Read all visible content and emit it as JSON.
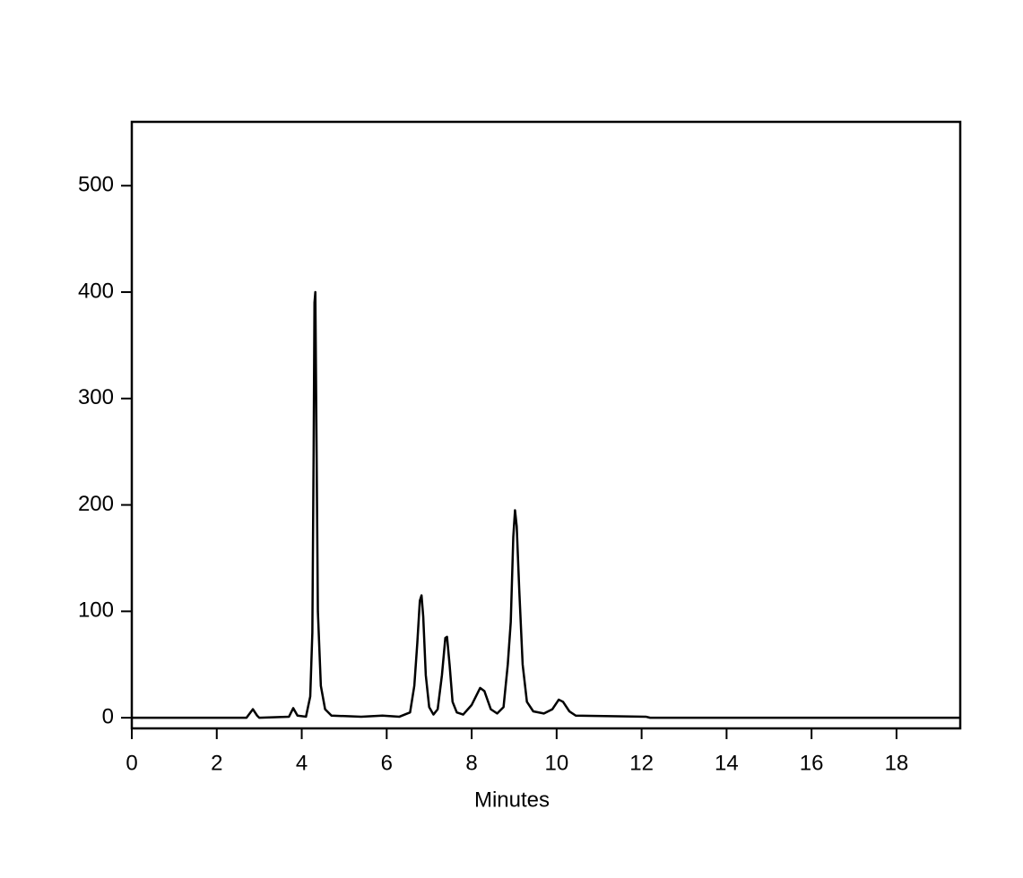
{
  "chart_data": {
    "type": "line",
    "x_label": "Minutes",
    "x": [
      0,
      2.7,
      2.85,
      2.95,
      3.0,
      3.7,
      3.8,
      3.9,
      4.1,
      4.2,
      4.25,
      4.28,
      4.3,
      4.32,
      4.35,
      4.38,
      4.45,
      4.55,
      4.7,
      5.4,
      5.9,
      6.3,
      6.55,
      6.65,
      6.72,
      6.78,
      6.82,
      6.86,
      6.92,
      7.0,
      7.1,
      7.2,
      7.3,
      7.38,
      7.42,
      7.48,
      7.55,
      7.65,
      7.8,
      8.0,
      8.2,
      8.3,
      8.45,
      8.6,
      8.75,
      8.85,
      8.92,
      8.98,
      9.02,
      9.06,
      9.12,
      9.2,
      9.3,
      9.45,
      9.7,
      9.9,
      10.05,
      10.15,
      10.3,
      10.45,
      12.1,
      12.2,
      19.5
    ],
    "values": [
      0,
      0,
      8,
      2,
      0,
      1,
      9,
      2,
      1,
      20,
      80,
      250,
      390,
      400,
      250,
      100,
      30,
      8,
      2,
      1,
      2,
      1,
      5,
      30,
      70,
      110,
      115,
      95,
      40,
      10,
      3,
      8,
      40,
      75,
      76,
      50,
      15,
      5,
      3,
      12,
      28,
      25,
      8,
      4,
      10,
      50,
      90,
      170,
      195,
      180,
      120,
      50,
      15,
      6,
      4,
      8,
      17,
      15,
      6,
      2,
      1,
      0,
      0
    ],
    "color": "#000000",
    "xlim": [
      0,
      19.5
    ],
    "xticks": [
      0,
      2,
      4,
      6,
      8,
      10,
      12,
      14,
      16,
      18
    ],
    "ylim": [
      -10,
      560
    ],
    "yticks": [
      0,
      100,
      200,
      300,
      400,
      500
    ]
  }
}
